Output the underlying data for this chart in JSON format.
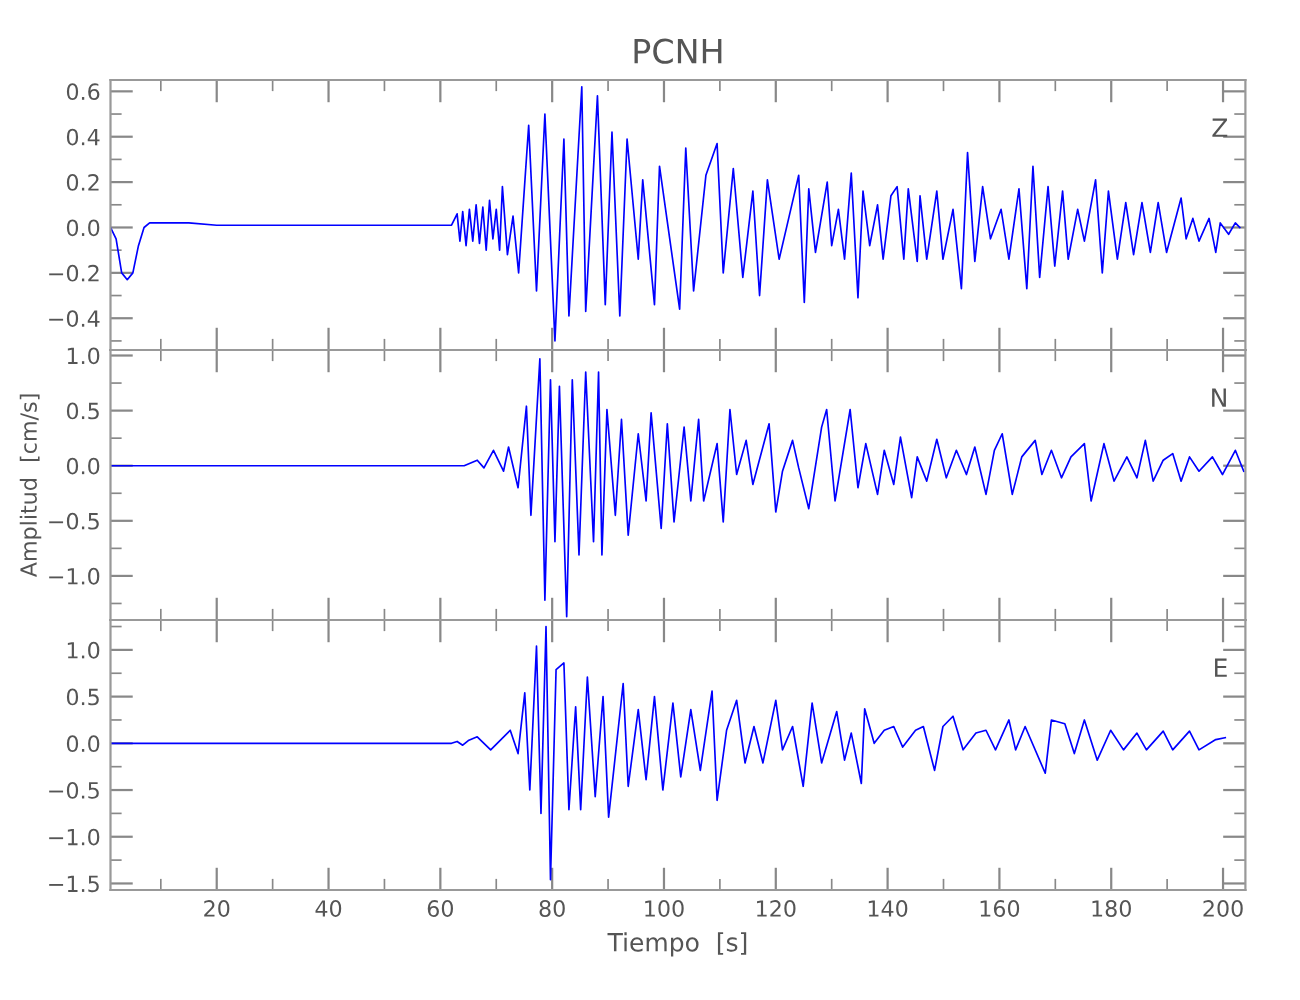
{
  "chart_data": [
    {
      "type": "line",
      "title": "PCNH",
      "xlim": [
        1,
        204
      ],
      "ylim": [
        -0.54,
        0.65
      ],
      "xticks": [
        20,
        40,
        60,
        80,
        100,
        120,
        140,
        160,
        180,
        200
      ],
      "yticks": [
        {
          "value": -0.4,
          "label": "−0.4"
        },
        {
          "value": -0.2,
          "label": "−0.2"
        },
        {
          "value": 0,
          "label": "0.0"
        },
        {
          "value": 0.2,
          "label": "0.2"
        },
        {
          "value": 0.4,
          "label": "0.4"
        },
        {
          "value": 0.6,
          "label": "0.6"
        }
      ],
      "tick_labels": "y",
      "annotations": [
        "Z"
      ],
      "series": [
        {
          "color": "#0000ff",
          "x": [
            1,
            2,
            3,
            4,
            5,
            6,
            7,
            8,
            10,
            15,
            20,
            30,
            40,
            50,
            62,
            63,
            63.5,
            64,
            64.6,
            65.2,
            65.8,
            66.4,
            67,
            67.6,
            68.2,
            68.8,
            69.4,
            70,
            70.6,
            71.1,
            72,
            73,
            74,
            75.8,
            77.2,
            78.7,
            80.5,
            82.1,
            83.0,
            85.3,
            86.0,
            88.1,
            89.5,
            90.7,
            92.1,
            93.4,
            95.4,
            96.2,
            98.3,
            99.2,
            102.8,
            103.9,
            105.3,
            107.5,
            109.5,
            110.6,
            112.4,
            114.1,
            115.9,
            117.1,
            118.5,
            120.6,
            122.4,
            124.1,
            125.1,
            125.9,
            127.1,
            129.2,
            130.0,
            131.2,
            132.3,
            133.5,
            134.7,
            135.6,
            136.8,
            138.2,
            139.2,
            140.6,
            141.7,
            142.9,
            143.7,
            145.3,
            145.8,
            147.0,
            148.8,
            149.9,
            151.7,
            153.2,
            154.3,
            155.6,
            157.0,
            158.4,
            160.3,
            161.7,
            163.5,
            164.9,
            166.0,
            167.2,
            168.7,
            169.9,
            171.3,
            172.3,
            174.0,
            175.2,
            177.2,
            178.4,
            179.5,
            181.1,
            182.6,
            184.0,
            185.5,
            187.0,
            188.4,
            189.9,
            192.5,
            193.4,
            194.6,
            195.7,
            197.5,
            198.7,
            199.5,
            201.0,
            202.2,
            203.0
          ],
          "values": [
            0,
            -0.05,
            -0.2,
            -0.23,
            -0.2,
            -0.08,
            0,
            0.02,
            0.02,
            0.02,
            0.01,
            0.01,
            0.01,
            0.01,
            0.01,
            0.06,
            -0.06,
            0.07,
            -0.08,
            0.08,
            -0.06,
            0.1,
            -0.07,
            0.09,
            -0.1,
            0.12,
            -0.05,
            0.08,
            -0.1,
            0.18,
            -0.12,
            0.05,
            -0.2,
            0.45,
            -0.28,
            0.5,
            -0.5,
            0.39,
            -0.39,
            0.62,
            -0.37,
            0.58,
            -0.34,
            0.42,
            -0.39,
            0.39,
            -0.14,
            0.21,
            -0.34,
            0.27,
            -0.36,
            0.35,
            -0.28,
            0.23,
            0.37,
            -0.2,
            0.26,
            -0.22,
            0.16,
            -0.3,
            0.21,
            -0.14,
            0.05,
            0.23,
            -0.33,
            0.17,
            -0.11,
            0.2,
            -0.08,
            0.08,
            -0.14,
            0.24,
            -0.31,
            0.16,
            -0.08,
            0.1,
            -0.14,
            0.14,
            0.18,
            -0.14,
            0.17,
            -0.15,
            0.14,
            -0.14,
            0.16,
            -0.14,
            0.08,
            -0.27,
            0.33,
            -0.15,
            0.18,
            -0.05,
            0.08,
            -0.14,
            0.17,
            -0.27,
            0.27,
            -0.22,
            0.18,
            -0.17,
            0.16,
            -0.14,
            0.08,
            -0.06,
            0.21,
            -0.2,
            0.16,
            -0.14,
            0.11,
            -0.12,
            0.11,
            -0.11,
            0.11,
            -0.11,
            0.13,
            -0.05,
            0.04,
            -0.06,
            0.04,
            -0.11,
            0.02,
            -0.03,
            0.02,
            0.0
          ]
        }
      ]
    },
    {
      "type": "line",
      "ylabel": "Amplitud  [cm/s]",
      "xlim": [
        1,
        204
      ],
      "ylim": [
        -1.4,
        1.05
      ],
      "xticks": [
        20,
        40,
        60,
        80,
        100,
        120,
        140,
        160,
        180,
        200
      ],
      "yticks": [
        {
          "value": -1,
          "label": "−1.0"
        },
        {
          "value": -0.5,
          "label": "−0.5"
        },
        {
          "value": 0,
          "label": "0.0"
        },
        {
          "value": 0.5,
          "label": "0.5"
        },
        {
          "value": 1,
          "label": "1.0"
        }
      ],
      "tick_labels": "y",
      "annotations": [
        "N"
      ],
      "series": [
        {
          "color": "#0000ff",
          "x": [
            1,
            30,
            62,
            64.25,
            66.6,
            67.8,
            69.5,
            71.3,
            72.2,
            73.9,
            75.4,
            76.2,
            77.8,
            78.7,
            79.7,
            80.5,
            81.3,
            82.6,
            83.6,
            84.8,
            86.0,
            87.4,
            88.3,
            88.9,
            89.8,
            91.3,
            92.4,
            93.6,
            95.4,
            96.8,
            97.7,
            99.5,
            100.6,
            101.8,
            103.6,
            104.8,
            106.2,
            107.1,
            109.5,
            110.6,
            111.8,
            113.0,
            114.7,
            115.9,
            118.8,
            120.0,
            121.2,
            123.0,
            124.1,
            125.9,
            128.2,
            129.1,
            130.6,
            133.3,
            134.7,
            136.1,
            138.2,
            139.4,
            141.1,
            142.3,
            144.3,
            145.3,
            147.0,
            148.8,
            150.5,
            152.3,
            154.1,
            155.6,
            157.6,
            159.1,
            160.5,
            162.3,
            164.0,
            166.4,
            167.6,
            169.3,
            171.1,
            172.8,
            175.2,
            176.4,
            178.7,
            180.5,
            182.8,
            184.6,
            186.1,
            187.5,
            189.3,
            191.0,
            192.5,
            194.0,
            195.7,
            198.1,
            199.9,
            202.2,
            203.7
          ],
          "values": [
            0,
            0,
            0,
            0,
            0.05,
            -0.02,
            0.14,
            -0.05,
            0.17,
            -0.2,
            0.54,
            -0.45,
            0.97,
            -1.22,
            0.78,
            -0.69,
            0.72,
            -1.37,
            0.78,
            -0.81,
            0.85,
            -0.69,
            0.85,
            -0.81,
            0.51,
            -0.45,
            0.42,
            -0.63,
            0.29,
            -0.32,
            0.48,
            -0.57,
            0.38,
            -0.51,
            0.35,
            -0.32,
            0.42,
            -0.32,
            0.2,
            -0.51,
            0.51,
            -0.08,
            0.23,
            -0.17,
            0.38,
            -0.42,
            -0.05,
            0.23,
            -0.02,
            -0.39,
            0.35,
            0.51,
            -0.32,
            0.51,
            -0.2,
            0.2,
            -0.26,
            0.14,
            -0.17,
            0.26,
            -0.29,
            0.08,
            -0.14,
            0.24,
            -0.11,
            0.14,
            -0.08,
            0.17,
            -0.26,
            0.14,
            0.29,
            -0.26,
            0.08,
            0.23,
            -0.08,
            0.14,
            -0.11,
            0.08,
            0.2,
            -0.32,
            0.2,
            -0.14,
            0.08,
            -0.11,
            0.23,
            -0.14,
            0.05,
            0.11,
            -0.14,
            0.08,
            -0.05,
            0.08,
            -0.08,
            0.14,
            -0.05
          ]
        }
      ]
    },
    {
      "type": "line",
      "xlabel": "Tiempo  [s]",
      "xlim": [
        1,
        204
      ],
      "ylim": [
        -1.57,
        1.32
      ],
      "xticks": [
        20,
        40,
        60,
        80,
        100,
        120,
        140,
        160,
        180,
        200
      ],
      "yticks": [
        {
          "value": -1.5,
          "label": "−1.5"
        },
        {
          "value": -1,
          "label": "−1.0"
        },
        {
          "value": -0.5,
          "label": "−0.5"
        },
        {
          "value": 0,
          "label": "0.0"
        },
        {
          "value": 0.5,
          "label": "0.5"
        },
        {
          "value": 1,
          "label": "1.0"
        }
      ],
      "annotations": [
        "E"
      ],
      "series": [
        {
          "color": "#0000ff",
          "x": [
            1,
            20,
            40,
            62,
            63,
            64,
            65,
            66.6,
            69.0,
            72.5,
            73.9,
            75.1,
            76.0,
            77.2,
            78.0,
            78.9,
            79.7,
            80.7,
            82.1,
            83.0,
            84.2,
            85.1,
            86.3,
            87.7,
            89.1,
            90.1,
            92.7,
            93.6,
            95.4,
            96.8,
            98.3,
            99.8,
            101.6,
            103.0,
            104.8,
            106.5,
            108.6,
            109.5,
            111.2,
            113.0,
            114.5,
            116.1,
            117.7,
            120.0,
            121.2,
            123.0,
            124.9,
            126.5,
            128.2,
            130.9,
            132.3,
            133.5,
            135.3,
            135.9,
            137.6,
            139.4,
            141.1,
            142.7,
            145.0,
            146.4,
            148.4,
            149.9,
            151.7,
            153.5,
            155.8,
            157.6,
            159.3,
            161.7,
            162.9,
            164.6,
            168.2,
            169.3,
            171.7,
            173.4,
            175.2,
            177.5,
            179.9,
            182.2,
            184.6,
            186.3,
            189.3,
            191.0,
            194.0,
            195.7,
            198.7,
            200.4
          ],
          "values": [
            0,
            0.0,
            0,
            0.0,
            0.02,
            -0.02,
            0.03,
            0.07,
            -0.07,
            0.14,
            -0.11,
            0.54,
            -0.5,
            1.04,
            -0.75,
            1.25,
            -1.46,
            0.79,
            0.86,
            -0.71,
            0.39,
            -0.71,
            0.71,
            -0.57,
            0.5,
            -0.79,
            0.64,
            -0.46,
            0.36,
            -0.39,
            0.5,
            -0.5,
            0.43,
            -0.36,
            0.36,
            -0.29,
            0.56,
            -0.61,
            0.14,
            0.46,
            -0.21,
            0.18,
            -0.21,
            0.46,
            -0.07,
            0.18,
            -0.46,
            0.43,
            -0.21,
            0.34,
            -0.18,
            0.11,
            -0.43,
            0.37,
            0.0,
            0.14,
            0.18,
            -0.04,
            0.14,
            0.18,
            -0.29,
            0.18,
            0.29,
            -0.07,
            0.11,
            0.14,
            -0.07,
            0.25,
            -0.07,
            0.18,
            -0.32,
            0.25,
            0.21,
            -0.11,
            0.25,
            -0.18,
            0.14,
            -0.07,
            0.11,
            -0.07,
            0.13,
            -0.07,
            0.13,
            -0.07,
            0.04,
            0.06
          ]
        }
      ]
    }
  ]
}
